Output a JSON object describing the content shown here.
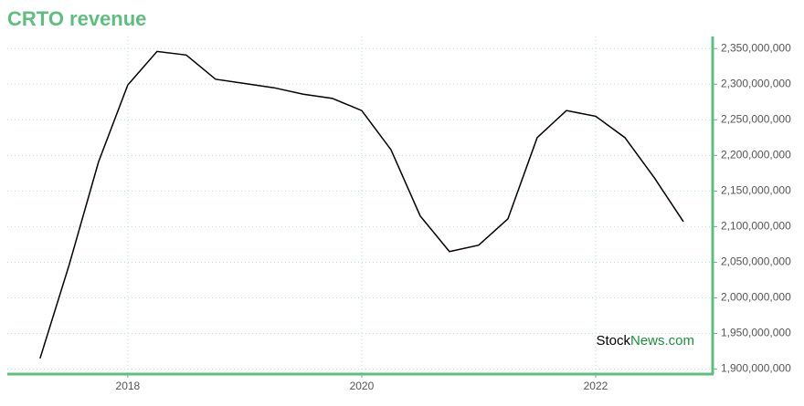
{
  "chart_data": {
    "type": "line",
    "title": "CRTO revenue",
    "x": [
      2017.25,
      2017.5,
      2017.75,
      2018,
      2018.25,
      2018.5,
      2018.75,
      2019,
      2019.25,
      2019.5,
      2019.75,
      2020,
      2020.25,
      2020.5,
      2020.75,
      2021,
      2021.25,
      2021.5,
      2021.75,
      2022,
      2022.25,
      2022.5,
      2022.75
    ],
    "series": [
      {
        "name": "Revenue",
        "color": "#000000",
        "values": [
          1915000000,
          2047000000,
          2191000000,
          2299000000,
          2346000000,
          2341000000,
          2307000000,
          2301000000,
          2295000000,
          2286000000,
          2280000000,
          2263000000,
          2208000000,
          2115000000,
          2065000000,
          2074000000,
          2111000000,
          2225000000,
          2263000000,
          2255000000,
          2225000000,
          2169000000,
          2107000000
        ]
      }
    ],
    "xlim": [
      2016.97,
      2023
    ],
    "xticks": [
      2018,
      2020,
      2022
    ],
    "ylim": [
      1893000000,
      2367000000
    ],
    "yticks": [
      {
        "value": 1900000000,
        "label": "1,900,000,000"
      },
      {
        "value": 1950000000,
        "label": "1,950,000,000"
      },
      {
        "value": 2000000000,
        "label": "2,000,000,000"
      },
      {
        "value": 2050000000,
        "label": "2,050,000,000"
      },
      {
        "value": 2100000000,
        "label": "2,100,000,000"
      },
      {
        "value": 2150000000,
        "label": "2,150,000,000"
      },
      {
        "value": 2200000000,
        "label": "2,200,000,000"
      },
      {
        "value": 2250000000,
        "label": "2,250,000,000"
      },
      {
        "value": 2300000000,
        "label": "2,300,000,000"
      },
      {
        "value": 2350000000,
        "label": "2,350,000,000"
      }
    ],
    "grid": true,
    "axis_color": "#5cbf7f",
    "watermark": {
      "brand": "Stock",
      "suffix": "News.com"
    }
  }
}
